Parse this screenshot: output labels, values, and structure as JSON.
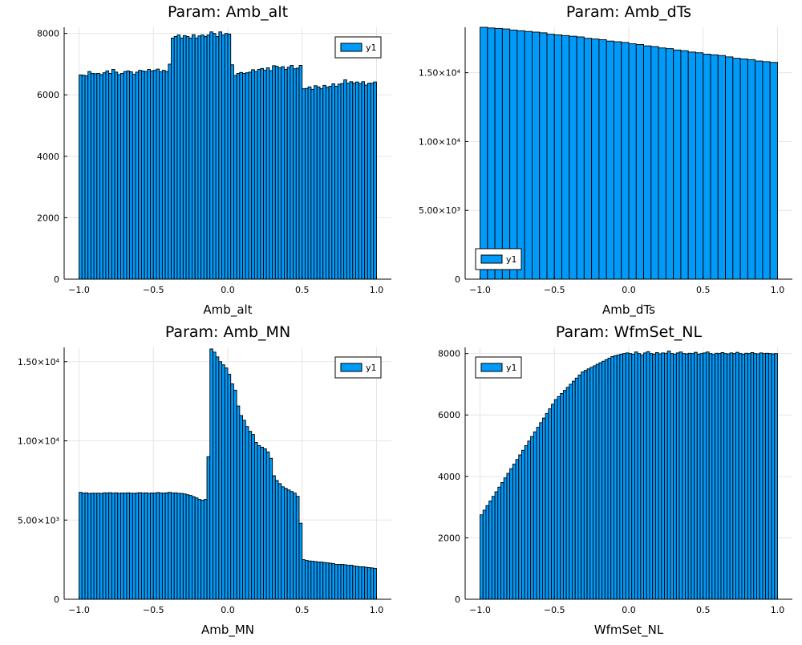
{
  "colors": {
    "bar": "#009AF9",
    "bar_edge": "#000000",
    "grid": "#e5e5e5",
    "axis": "#000000"
  },
  "chart_data": [
    {
      "type": "bar",
      "title": "Param: Amb_alt",
      "xlabel": "Amb_alt",
      "ylabel": "",
      "legend": {
        "label": "y1",
        "position": "top-right"
      },
      "xlim": [
        -1.1,
        1.1
      ],
      "ylim": [
        0,
        8200
      ],
      "xticks": [
        -1.0,
        -0.5,
        0.0,
        0.5,
        1.0
      ],
      "xtick_labels": [
        "−1.0",
        "−0.5",
        "0.0",
        "0.5",
        "1.0"
      ],
      "yticks": [
        0,
        2000,
        4000,
        6000,
        8000
      ],
      "ytick_labels": [
        "0",
        "2000",
        "4000",
        "6000",
        "8000"
      ],
      "bin_start": -1.0,
      "bin_width": 0.02,
      "values": [
        6650,
        6640,
        6620,
        6760,
        6700,
        6690,
        6700,
        6660,
        6720,
        6780,
        6700,
        6830,
        6740,
        6660,
        6700,
        6760,
        6780,
        6750,
        6670,
        6740,
        6800,
        6780,
        6760,
        6830,
        6780,
        6800,
        6840,
        6750,
        6800,
        6760,
        7000,
        7850,
        7900,
        7950,
        7850,
        7930,
        7900,
        7850,
        7960,
        7850,
        7920,
        7950,
        7900,
        7950,
        8050,
        8000,
        7900,
        8050,
        7950,
        8000,
        7980,
        6980,
        6630,
        6700,
        6730,
        6700,
        6720,
        6740,
        6820,
        6760,
        6830,
        6860,
        6800,
        6880,
        6790,
        6950,
        6930,
        6880,
        6920,
        6830,
        6900,
        6960,
        6850,
        6870,
        6960,
        6200,
        6210,
        6260,
        6180,
        6300,
        6260,
        6200,
        6310,
        6250,
        6280,
        6360,
        6280,
        6350,
        6370,
        6490,
        6380,
        6430,
        6380,
        6420,
        6370,
        6430,
        6320,
        6380,
        6380,
        6420
      ]
    },
    {
      "type": "bar",
      "title": "Param: Amb_dTs",
      "xlabel": "Amb_dTs",
      "ylabel": "",
      "legend": {
        "label": "y1",
        "position": "bottom-left"
      },
      "xlim": [
        -1.1,
        1.1
      ],
      "ylim": [
        0,
        18300
      ],
      "xticks": [
        -1.0,
        -0.5,
        0.0,
        0.5,
        1.0
      ],
      "xtick_labels": [
        "−1.0",
        "−0.5",
        "0.0",
        "0.5",
        "1.0"
      ],
      "yticks": [
        0,
        5000,
        10000,
        15000
      ],
      "ytick_labels": [
        "0",
        "5.00×10³",
        "1.00×10⁴",
        "1.50×10⁴"
      ],
      "bin_start": -1.0,
      "bin_width": 0.05,
      "values": [
        18300,
        18250,
        18220,
        18180,
        18100,
        18050,
        18000,
        17950,
        17900,
        17800,
        17750,
        17700,
        17650,
        17600,
        17500,
        17450,
        17400,
        17300,
        17250,
        17200,
        17100,
        17050,
        16950,
        16900,
        16800,
        16750,
        16650,
        16600,
        16500,
        16450,
        16350,
        16300,
        16250,
        16150,
        16050,
        16000,
        15950,
        15850,
        15800,
        15750
      ]
    },
    {
      "type": "bar",
      "title": "Param: Amb_MN",
      "xlabel": "Amb_MN",
      "ylabel": "",
      "legend": {
        "label": "y1",
        "position": "top-right"
      },
      "xlim": [
        -1.1,
        1.1
      ],
      "ylim": [
        0,
        15900
      ],
      "xticks": [
        -1.0,
        -0.5,
        0.0,
        0.5,
        1.0
      ],
      "xtick_labels": [
        "−1.0",
        "−0.5",
        "0.0",
        "0.5",
        "1.0"
      ],
      "yticks": [
        0,
        5000,
        10000,
        15000
      ],
      "ytick_labels": [
        "0",
        "5.00×10³",
        "1.00×10⁴",
        "1.50×10⁴"
      ],
      "bin_start": -1.0,
      "bin_width": 0.02,
      "values": [
        6750,
        6700,
        6720,
        6680,
        6700,
        6690,
        6700,
        6680,
        6720,
        6710,
        6730,
        6700,
        6720,
        6690,
        6710,
        6700,
        6720,
        6700,
        6690,
        6710,
        6730,
        6700,
        6720,
        6690,
        6710,
        6700,
        6740,
        6710,
        6700,
        6720,
        6750,
        6700,
        6720,
        6690,
        6680,
        6650,
        6600,
        6550,
        6480,
        6400,
        6300,
        6250,
        6300,
        9000,
        15800,
        15600,
        15300,
        15000,
        14800,
        14600,
        14200,
        13600,
        13200,
        12200,
        11600,
        11300,
        10900,
        10600,
        10400,
        9900,
        9700,
        9600,
        9500,
        9300,
        8900,
        7800,
        7500,
        7300,
        7100,
        7000,
        6900,
        6800,
        6700,
        6500,
        4800,
        2500,
        2450,
        2420,
        2400,
        2380,
        2350,
        2350,
        2320,
        2300,
        2280,
        2250,
        2200,
        2200,
        2200,
        2180,
        2150,
        2150,
        2100,
        2080,
        2050,
        2050,
        2020,
        2000,
        1980,
        1950
      ]
    },
    {
      "type": "bar",
      "title": "Param: WfmSet_NL",
      "xlabel": "WfmSet_NL",
      "ylabel": "",
      "legend": {
        "label": "y1",
        "position": "top-left"
      },
      "xlim": [
        -1.1,
        1.1
      ],
      "ylim": [
        0,
        8200
      ],
      "xticks": [
        -1.0,
        -0.5,
        0.0,
        0.5,
        1.0
      ],
      "xtick_labels": [
        "−1.0",
        "−0.5",
        "0.0",
        "0.5",
        "1.0"
      ],
      "yticks": [
        0,
        2000,
        4000,
        6000,
        8000
      ],
      "ytick_labels": [
        "0",
        "2000",
        "4000",
        "6000",
        "8000"
      ],
      "bin_start": -1.0,
      "bin_width": 0.02,
      "values": [
        2750,
        2900,
        3050,
        3200,
        3350,
        3500,
        3650,
        3800,
        3950,
        4100,
        4250,
        4400,
        4550,
        4700,
        4850,
        5000,
        5150,
        5300,
        5450,
        5600,
        5750,
        5900,
        6050,
        6200,
        6350,
        6500,
        6600,
        6700,
        6800,
        6900,
        7000,
        7100,
        7200,
        7300,
        7400,
        7450,
        7500,
        7550,
        7600,
        7650,
        7700,
        7750,
        7800,
        7850,
        7900,
        7930,
        7950,
        7980,
        8000,
        8020,
        8000,
        7980,
        8050,
        8000,
        7950,
        8020,
        8060,
        8000,
        7980,
        8030,
        7990,
        8020,
        8010,
        8080,
        8000,
        7980,
        8020,
        8050,
        8000,
        7990,
        8010,
        8000,
        8040,
        7980,
        8000,
        8020,
        8050,
        8000,
        7970,
        8010,
        8000,
        8030,
        8000,
        7990,
        8020,
        8000,
        8040,
        8000,
        7980,
        8010,
        8000,
        8030,
        8000,
        7990,
        8020,
        8000,
        8010,
        8000,
        7990,
        8000
      ]
    }
  ]
}
